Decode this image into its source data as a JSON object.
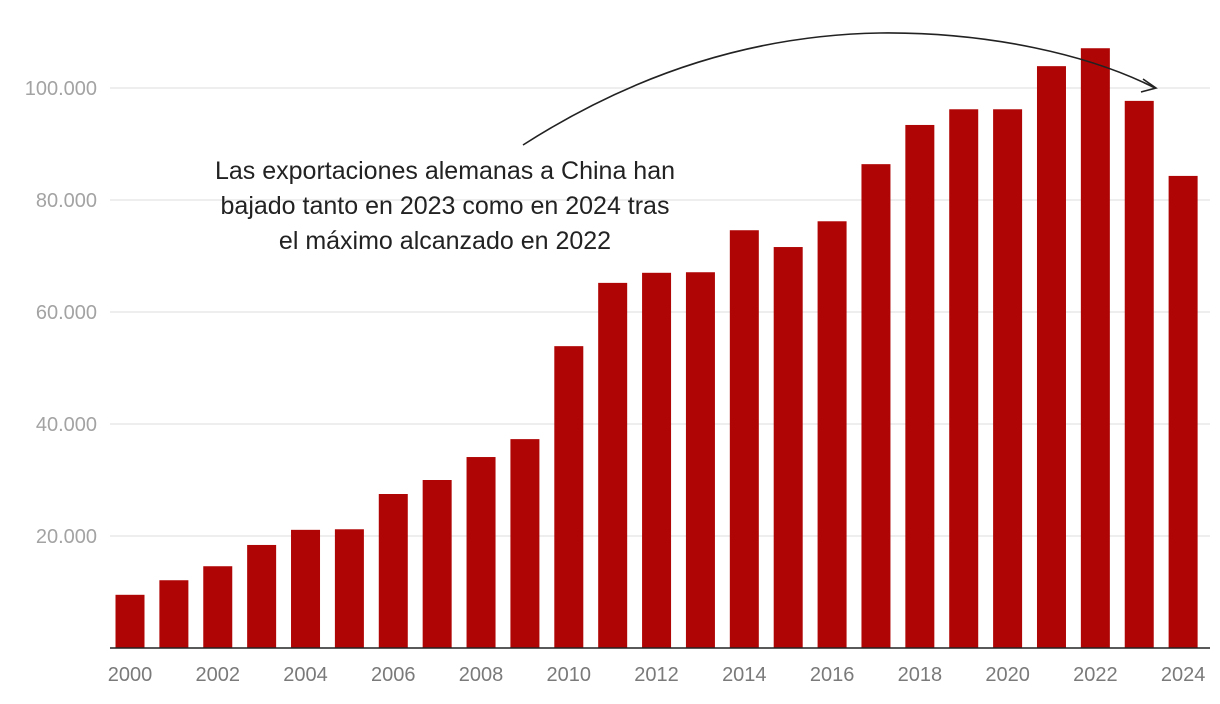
{
  "chart_data": {
    "type": "bar",
    "title": "",
    "xlabel": "",
    "ylabel": "",
    "categories": [
      "2000",
      "2001",
      "2002",
      "2003",
      "2004",
      "2005",
      "2006",
      "2007",
      "2008",
      "2009",
      "2010",
      "2011",
      "2012",
      "2013",
      "2014",
      "2015",
      "2016",
      "2017",
      "2018",
      "2019",
      "2020",
      "2021",
      "2022",
      "2023",
      "2024"
    ],
    "values": [
      9500,
      12100,
      14600,
      18400,
      21100,
      21200,
      27500,
      30000,
      34100,
      37300,
      53900,
      65200,
      67000,
      67100,
      74600,
      71600,
      76200,
      86400,
      93400,
      96200,
      96200,
      103900,
      107100,
      97700,
      84300
    ],
    "ylim": [
      0,
      110000
    ],
    "yticks": [
      20000,
      40000,
      60000,
      80000,
      100000
    ],
    "ytick_labels": [
      "20.000",
      "40.000",
      "60.000",
      "80.000",
      "100.000"
    ],
    "xtick_labels": [
      "2000",
      "2002",
      "2004",
      "2006",
      "2008",
      "2010",
      "2012",
      "2014",
      "2016",
      "2018",
      "2020",
      "2022",
      "2024"
    ],
    "grid": true,
    "bar_color": "#b00505",
    "annotation": {
      "lines": [
        "Las exportaciones alemanas a China han",
        "bajado tanto en 2023 como en 2024 tras",
        "el máximo alcanzado en 2022"
      ],
      "points_to": "2023"
    }
  }
}
